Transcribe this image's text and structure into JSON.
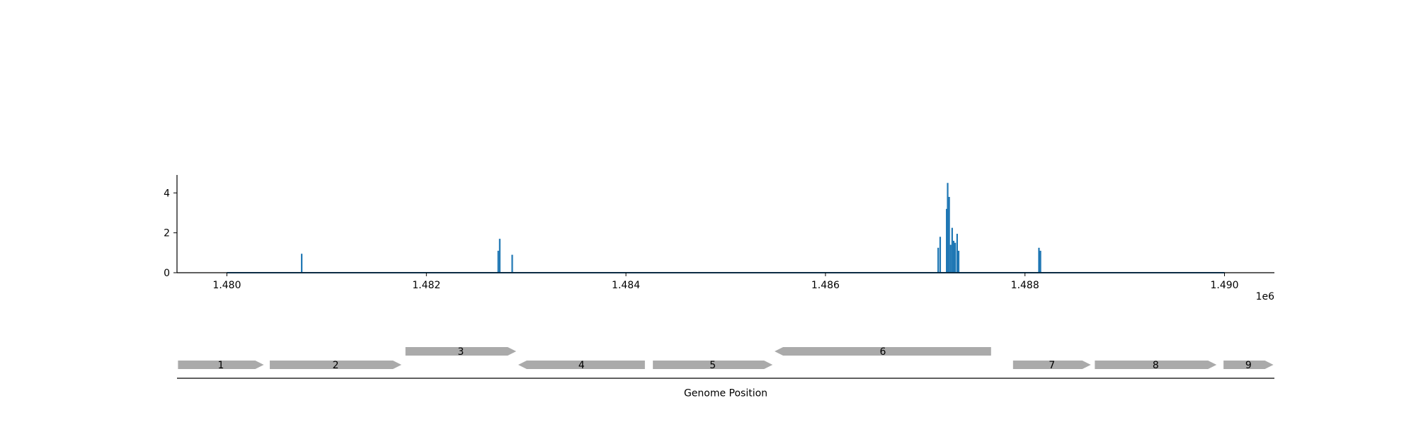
{
  "chart_data": [
    {
      "type": "line",
      "title": "",
      "xlabel": "",
      "ylabel": "",
      "xlim": [
        1479500,
        1490500
      ],
      "ylim": [
        0,
        4.9
      ],
      "x_offset_label": "1e6",
      "x_ticks": [
        1480000,
        1482000,
        1484000,
        1486000,
        1488000,
        1490000
      ],
      "x_tick_labels": [
        "1.480",
        "1.482",
        "1.484",
        "1.486",
        "1.488",
        "1.490"
      ],
      "y_ticks": [
        0,
        2,
        4
      ],
      "y_tick_labels": [
        "0",
        "2",
        "4"
      ],
      "grid": false,
      "line_color": "#1f77b4",
      "baseline": [
        1480000,
        1490000
      ],
      "peaks": [
        {
          "x": 1480750,
          "y": 0.95
        },
        {
          "x": 1482720,
          "y": 1.1
        },
        {
          "x": 1482735,
          "y": 1.7
        },
        {
          "x": 1482860,
          "y": 0.9
        },
        {
          "x": 1487130,
          "y": 1.25
        },
        {
          "x": 1487150,
          "y": 1.8
        },
        {
          "x": 1487215,
          "y": 3.2
        },
        {
          "x": 1487225,
          "y": 4.5
        },
        {
          "x": 1487240,
          "y": 3.8
        },
        {
          "x": 1487255,
          "y": 1.4
        },
        {
          "x": 1487270,
          "y": 2.25
        },
        {
          "x": 1487285,
          "y": 1.6
        },
        {
          "x": 1487300,
          "y": 1.5
        },
        {
          "x": 1487320,
          "y": 1.95
        },
        {
          "x": 1487335,
          "y": 1.1
        },
        {
          "x": 1488140,
          "y": 1.25
        },
        {
          "x": 1488155,
          "y": 1.1
        }
      ]
    },
    {
      "type": "gene_track",
      "xlabel": "Genome Position",
      "feature_color": "#aaaaaa",
      "genes": [
        {
          "label": "1",
          "start": 1479510,
          "end": 1480370,
          "strand": "+",
          "row": 0
        },
        {
          "label": "2",
          "start": 1480430,
          "end": 1481750,
          "strand": "+",
          "row": 0
        },
        {
          "label": "3",
          "start": 1481790,
          "end": 1482900,
          "strand": "+",
          "row": 1
        },
        {
          "label": "4",
          "start": 1482920,
          "end": 1484190,
          "strand": "-",
          "row": 0
        },
        {
          "label": "5",
          "start": 1484270,
          "end": 1485470,
          "strand": "+",
          "row": 0
        },
        {
          "label": "6",
          "start": 1485490,
          "end": 1487660,
          "strand": "-",
          "row": 1
        },
        {
          "label": "7",
          "start": 1487880,
          "end": 1488660,
          "strand": "+",
          "row": 0
        },
        {
          "label": "8",
          "start": 1488700,
          "end": 1489920,
          "strand": "+",
          "row": 0
        },
        {
          "label": "9",
          "start": 1489990,
          "end": 1490490,
          "strand": "+",
          "row": 0
        }
      ]
    }
  ]
}
